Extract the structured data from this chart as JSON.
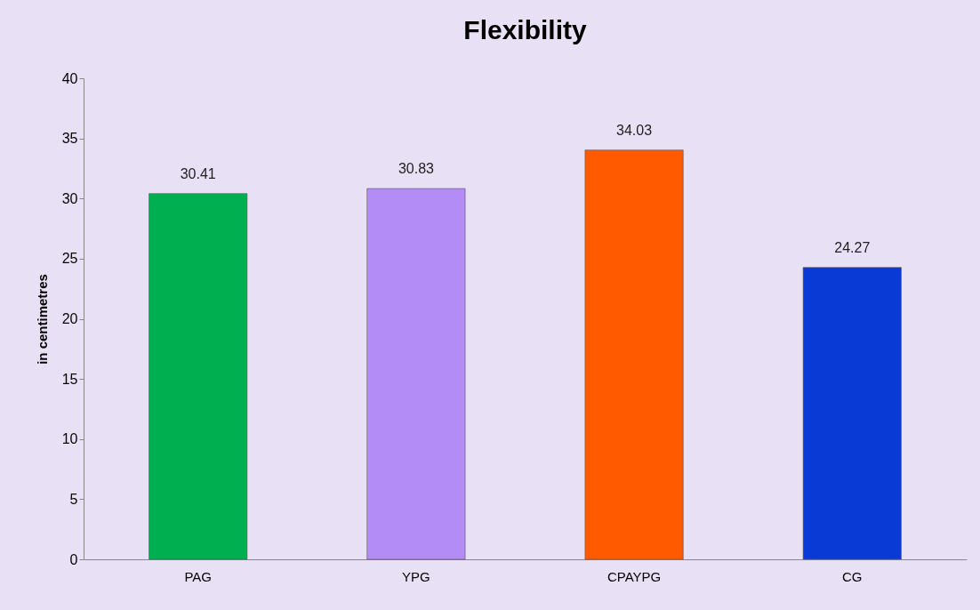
{
  "chart_data": {
    "type": "bar",
    "title": "Flexibility",
    "ylabel": "in centimetres",
    "categories": [
      "PAG",
      "YPG",
      "CPAYPG",
      "CG"
    ],
    "values": [
      30.41,
      30.83,
      34.03,
      24.27
    ],
    "colors": [
      "#00b050",
      "#b48cf5",
      "#ff5a00",
      "#0a3ad6"
    ],
    "ylim": [
      0,
      40
    ],
    "yticks": [
      0,
      5,
      10,
      15,
      20,
      25,
      30,
      35,
      40
    ],
    "grid": false,
    "data_labels": true
  }
}
